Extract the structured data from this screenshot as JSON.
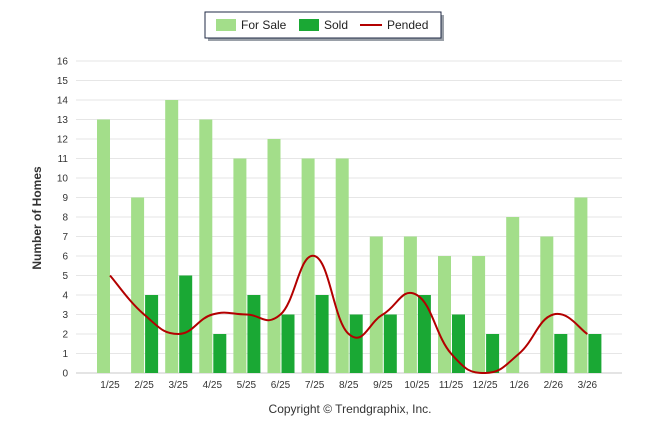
{
  "chart_data": {
    "type": "bar",
    "categories": [
      "1/25",
      "2/25",
      "3/25",
      "4/25",
      "5/25",
      "6/25",
      "7/25",
      "8/25",
      "9/25",
      "10/25",
      "11/25",
      "12/25",
      "1/26",
      "2/26",
      "3/26"
    ],
    "series": [
      {
        "name": "For Sale",
        "type": "bar",
        "color": "#a3de8a",
        "values": [
          13,
          9,
          14,
          13,
          11,
          12,
          11,
          11,
          7,
          7,
          6,
          6,
          8,
          7,
          9
        ]
      },
      {
        "name": "Sold",
        "type": "bar",
        "color": "#1aa834",
        "values": [
          0,
          4,
          5,
          2,
          4,
          3,
          4,
          3,
          3,
          4,
          3,
          2,
          0,
          2,
          2
        ]
      },
      {
        "name": "Pended",
        "type": "line",
        "color": "#b30000",
        "values": [
          5,
          3,
          2,
          3,
          3,
          3,
          6,
          2,
          3,
          4,
          1,
          0,
          1,
          3,
          2
        ]
      }
    ],
    "ylabel": "Number of Homes",
    "xlabel": "",
    "ylim": [
      0,
      16
    ],
    "yticks": [
      0,
      1,
      2,
      3,
      4,
      5,
      6,
      7,
      8,
      9,
      10,
      11,
      12,
      13,
      14,
      15,
      16
    ],
    "grid": true,
    "legend": "top-center",
    "credit": "Copyright © Trendgraphix, Inc."
  }
}
